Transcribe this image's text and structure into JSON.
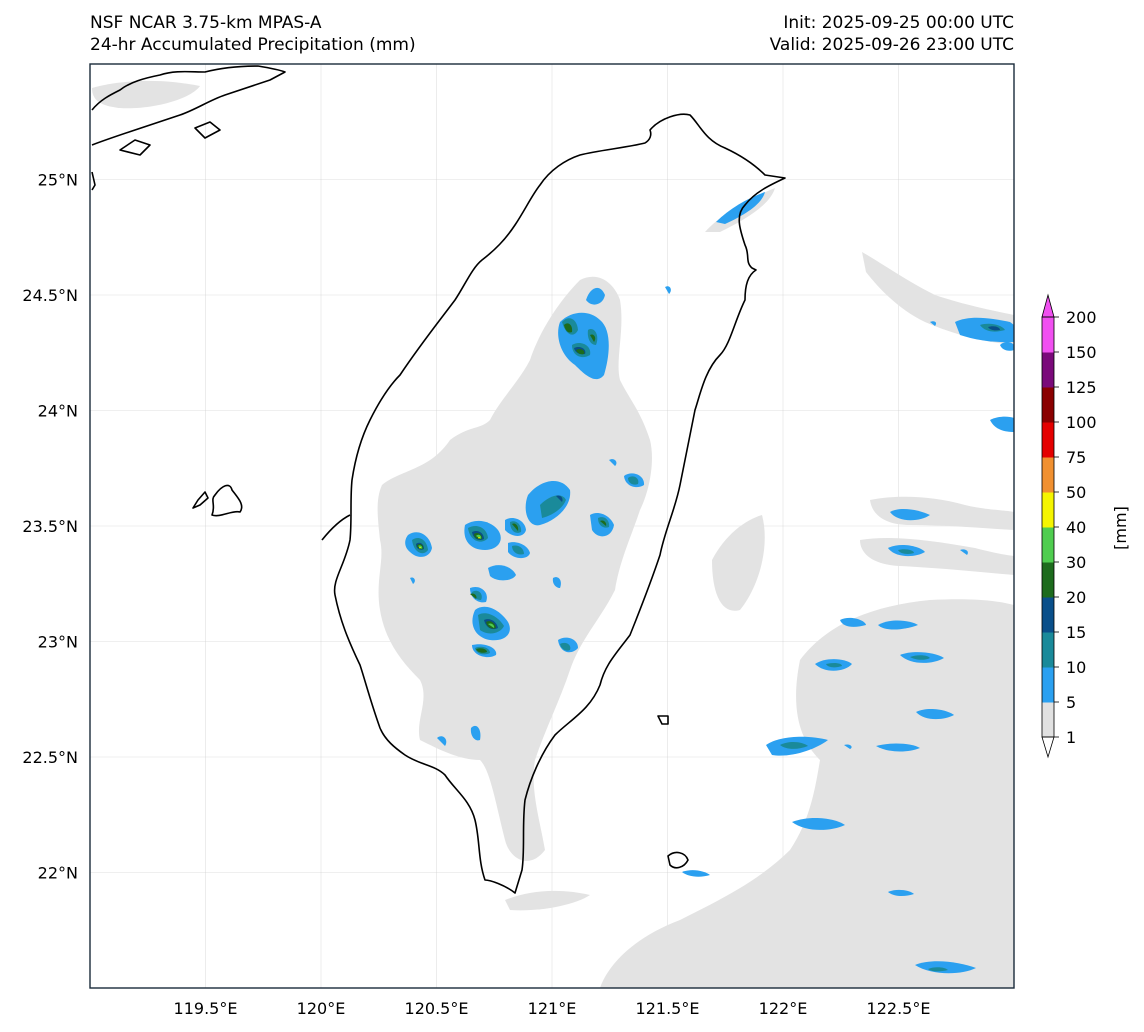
{
  "header": {
    "model": "NSF NCAR 3.75-km MPAS-A",
    "field": "24-hr Accumulated Precipitation (mm)",
    "init": "Init: 2025-09-25 00:00 UTC",
    "valid": "Valid: 2025-09-26 23:00 UTC"
  },
  "map": {
    "lon_range": [
      119.0,
      123.0
    ],
    "lat_range": [
      21.5,
      25.5
    ],
    "lon_ticks": [
      {
        "value": 119.5,
        "label": "119.5°E"
      },
      {
        "value": 120.0,
        "label": "120°E"
      },
      {
        "value": 120.5,
        "label": "120.5°E"
      },
      {
        "value": 121.0,
        "label": "121°E"
      },
      {
        "value": 121.5,
        "label": "121.5°E"
      },
      {
        "value": 122.0,
        "label": "122°E"
      },
      {
        "value": 122.5,
        "label": "122.5°E"
      }
    ],
    "lat_ticks": [
      {
        "value": 25.0,
        "label": "25°N"
      },
      {
        "value": 24.5,
        "label": "24.5°N"
      },
      {
        "value": 24.0,
        "label": "24°N"
      },
      {
        "value": 23.5,
        "label": "23.5°N"
      },
      {
        "value": 23.0,
        "label": "23°N"
      },
      {
        "value": 22.5,
        "label": "22.5°N"
      },
      {
        "value": 22.0,
        "label": "22°N"
      }
    ]
  },
  "colorbar": {
    "unit_label": "[mm]",
    "levels": [
      "1",
      "5",
      "10",
      "15",
      "20",
      "30",
      "40",
      "50",
      "75",
      "100",
      "125",
      "150",
      "200"
    ],
    "colors": [
      "#e1e1e1",
      "#2ba0f0",
      "#1a8a9a",
      "#0a4f8a",
      "#1d6b1d",
      "#4fcd4f",
      "#f5f500",
      "#f09030",
      "#e40000",
      "#8a0000",
      "#7a0a7a",
      "#f050f0"
    ]
  }
}
